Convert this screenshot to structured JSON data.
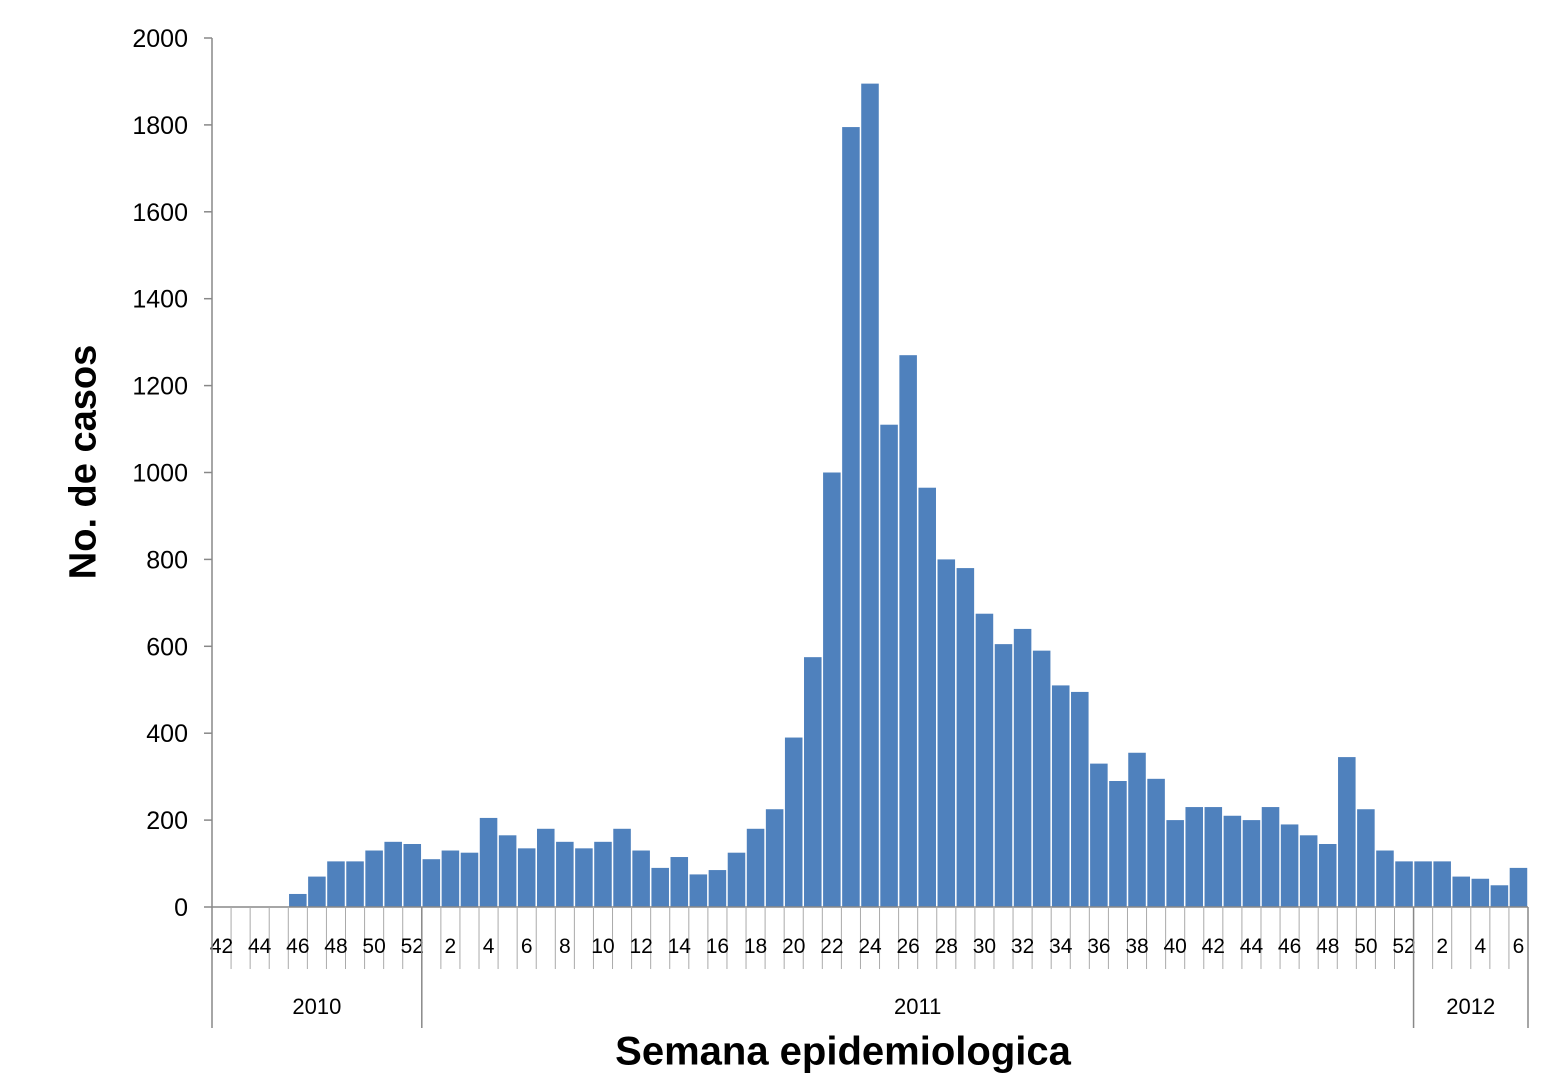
{
  "chart_data": {
    "type": "bar",
    "title": "",
    "xlabel": "Semana epidemiologica",
    "ylabel": "No. de casos",
    "ylim": [
      0,
      2000
    ],
    "yticks": [
      0,
      200,
      400,
      600,
      800,
      1000,
      1200,
      1400,
      1600,
      1800,
      2000
    ],
    "grid": false,
    "bar_color": "#4f81bd",
    "categories": [
      "42",
      "43",
      "44",
      "45",
      "46",
      "47",
      "48",
      "49",
      "50",
      "51",
      "52",
      "1",
      "2",
      "3",
      "4",
      "5",
      "6",
      "7",
      "8",
      "9",
      "10",
      "11",
      "12",
      "13",
      "14",
      "15",
      "16",
      "17",
      "18",
      "19",
      "20",
      "21",
      "22",
      "23",
      "24",
      "25",
      "26",
      "27",
      "28",
      "29",
      "30",
      "31",
      "32",
      "33",
      "34",
      "35",
      "36",
      "37",
      "38",
      "39",
      "40",
      "41",
      "42",
      "43",
      "44",
      "45",
      "46",
      "47",
      "48",
      "49",
      "50",
      "51",
      "52",
      "1",
      "2",
      "3",
      "4",
      "5",
      "6"
    ],
    "values": [
      0,
      0,
      0,
      0,
      30,
      70,
      105,
      105,
      130,
      150,
      145,
      110,
      130,
      125,
      205,
      165,
      135,
      180,
      150,
      135,
      150,
      180,
      130,
      90,
      115,
      75,
      85,
      125,
      180,
      225,
      390,
      575,
      1000,
      1795,
      1895,
      1110,
      1270,
      965,
      800,
      780,
      675,
      605,
      640,
      590,
      510,
      495,
      330,
      290,
      355,
      295,
      200,
      230,
      230,
      210,
      200,
      230,
      190,
      165,
      145,
      345,
      225,
      130,
      105,
      105,
      105,
      70,
      65,
      50,
      90
    ],
    "tick_labels": [
      "42",
      "44",
      "46",
      "48",
      "50",
      "52",
      "2",
      "4",
      "6",
      "8",
      "10",
      "12",
      "14",
      "16",
      "18",
      "20",
      "22",
      "24",
      "26",
      "28",
      "30",
      "32",
      "34",
      "36",
      "38",
      "40",
      "42",
      "44",
      "46",
      "48",
      "50",
      "52",
      "2",
      "4",
      "6"
    ],
    "years": [
      "2010",
      "2011",
      "2012"
    ]
  }
}
